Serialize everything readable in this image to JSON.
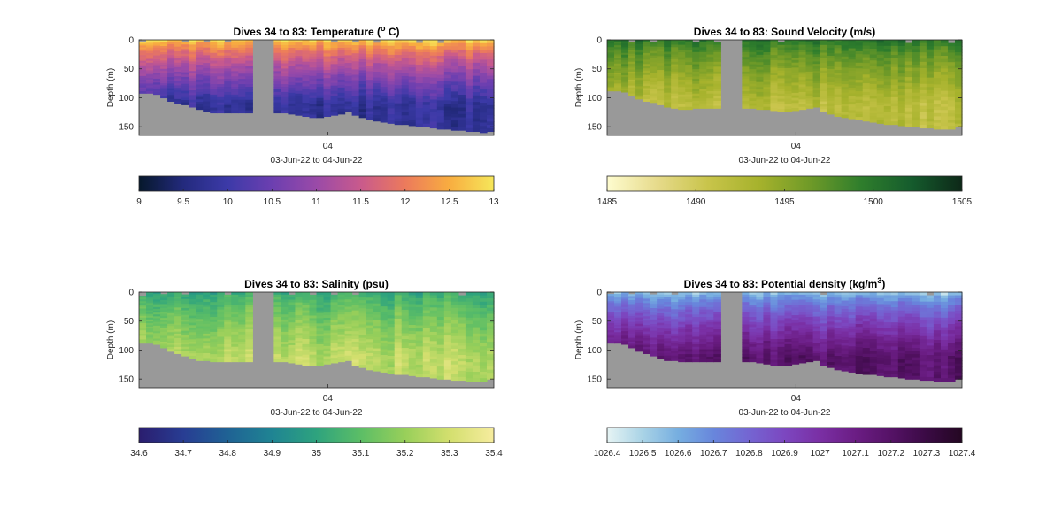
{
  "chart_data": [
    {
      "type": "heatmap",
      "title": "Dives 34 to 83: Temperature (",
      "title_sup": "o",
      "title_after": " C)",
      "ylabel": "Depth (m)",
      "xlabel": "03-Jun-22 to 04-Jun-22",
      "x_tick_labels": [
        "04"
      ],
      "y_tick_labels": [
        "0",
        "50",
        "100",
        "150"
      ],
      "ylim": [
        0,
        165
      ],
      "colorbar": {
        "ticks": [
          "9",
          "9.5",
          "10",
          "10.5",
          "11",
          "11.5",
          "12",
          "12.5",
          "13"
        ],
        "range": [
          9,
          13
        ],
        "colormap": [
          "#06182b",
          "#232a7d",
          "#3c3aa8",
          "#6c3fb0",
          "#9a4aa8",
          "#c95a8c",
          "#ec7a5c",
          "#f8ad40",
          "#f6e75a"
        ]
      },
      "gap_color": "#999999",
      "seabed_depth": [
        92,
        92,
        94,
        100,
        106,
        110,
        112,
        116,
        120,
        124,
        126,
        126,
        126,
        126,
        126,
        126,
        null,
        null,
        null,
        126,
        126,
        128,
        130,
        132,
        134,
        134,
        132,
        130,
        128,
        124,
        130,
        134,
        138,
        140,
        142,
        144,
        146,
        146,
        148,
        150,
        150,
        152,
        154,
        154,
        156,
        156,
        158,
        158,
        160,
        158
      ],
      "surface_value": 12.8,
      "bottom_value": 9.8
    },
    {
      "type": "heatmap",
      "title": "Dives 34 to 83: Sound Velocity (m/s)",
      "ylabel": "Depth (m)",
      "xlabel": "03-Jun-22 to 04-Jun-22",
      "x_tick_labels": [
        "04"
      ],
      "y_tick_labels": [
        "0",
        "50",
        "100",
        "150"
      ],
      "ylim": [
        0,
        165
      ],
      "colorbar": {
        "ticks": [
          "1485",
          "1490",
          "1495",
          "1500",
          "1505"
        ],
        "range": [
          1485,
          1505
        ],
        "colormap": [
          "#fefccf",
          "#e6da8a",
          "#c8c44a",
          "#a6b22c",
          "#6f9a28",
          "#2f7e2c",
          "#155c2d",
          "#0d2818"
        ]
      },
      "gap_color": "#999999",
      "seabed_depth": [
        88,
        88,
        90,
        96,
        102,
        106,
        108,
        112,
        116,
        118,
        120,
        120,
        118,
        118,
        118,
        118,
        null,
        null,
        null,
        118,
        118,
        120,
        120,
        122,
        124,
        124,
        122,
        120,
        118,
        116,
        124,
        128,
        132,
        134,
        136,
        138,
        140,
        142,
        144,
        146,
        146,
        148,
        150,
        150,
        152,
        152,
        154,
        154,
        154,
        150
      ],
      "surface_value": 1500,
      "bottom_value": 1492
    },
    {
      "type": "heatmap",
      "title": "Dives 34 to 83: Salinity (psu)",
      "ylabel": "Depth (m)",
      "xlabel": "03-Jun-22 to 04-Jun-22",
      "x_tick_labels": [
        "04"
      ],
      "y_tick_labels": [
        "0",
        "50",
        "100",
        "150"
      ],
      "ylim": [
        0,
        165
      ],
      "colorbar": {
        "ticks": [
          "34.6",
          "34.7",
          "34.8",
          "34.9",
          "35",
          "35.1",
          "35.2",
          "35.3",
          "35.4"
        ],
        "range": [
          34.6,
          35.4
        ],
        "colormap": [
          "#2a1d6e",
          "#283d93",
          "#1f6294",
          "#1f8493",
          "#2ea37e",
          "#5cbe66",
          "#98cf5a",
          "#d3df6e",
          "#f6ec9e"
        ]
      },
      "gap_color": "#999999",
      "seabed_depth": [
        88,
        88,
        90,
        96,
        102,
        106,
        110,
        114,
        118,
        118,
        120,
        120,
        120,
        120,
        120,
        120,
        null,
        null,
        null,
        120,
        120,
        122,
        124,
        126,
        126,
        126,
        124,
        122,
        120,
        118,
        126,
        130,
        134,
        136,
        138,
        140,
        142,
        142,
        144,
        146,
        146,
        148,
        150,
        150,
        152,
        152,
        154,
        154,
        154,
        150
      ],
      "surface_value": 35.02,
      "bottom_value": 35.26
    },
    {
      "type": "heatmap",
      "title": "Dives 34 to 83: Potential density (kg/m",
      "title_sup": "3",
      "title_after": ")",
      "ylabel": "Depth (m)",
      "xlabel": "03-Jun-22 to 04-Jun-22",
      "x_tick_labels": [
        "04"
      ],
      "y_tick_labels": [
        "0",
        "50",
        "100",
        "150"
      ],
      "ylim": [
        0,
        165
      ],
      "colorbar": {
        "ticks": [
          "1026.4",
          "1026.5",
          "1026.6",
          "1026.7",
          "1026.8",
          "1026.9",
          "1027",
          "1027.1",
          "1027.2",
          "1027.3",
          "1027.4"
        ],
        "range": [
          1026.4,
          1027.4
        ],
        "colormap": [
          "#e6f4f4",
          "#a9d3e6",
          "#76aee0",
          "#6886dc",
          "#7465d2",
          "#7c47c0",
          "#7a2fa4",
          "#6b1d84",
          "#551266",
          "#3a0a44",
          "#240722"
        ]
      },
      "gap_color": "#999999",
      "seabed_depth": [
        88,
        88,
        90,
        96,
        102,
        106,
        110,
        114,
        118,
        118,
        120,
        120,
        120,
        120,
        120,
        120,
        null,
        null,
        null,
        120,
        120,
        122,
        124,
        126,
        126,
        126,
        124,
        122,
        120,
        118,
        126,
        130,
        134,
        136,
        138,
        140,
        142,
        142,
        144,
        146,
        146,
        148,
        150,
        150,
        152,
        152,
        154,
        154,
        154,
        150
      ],
      "surface_value": 1026.55,
      "bottom_value": 1027.18
    }
  ]
}
